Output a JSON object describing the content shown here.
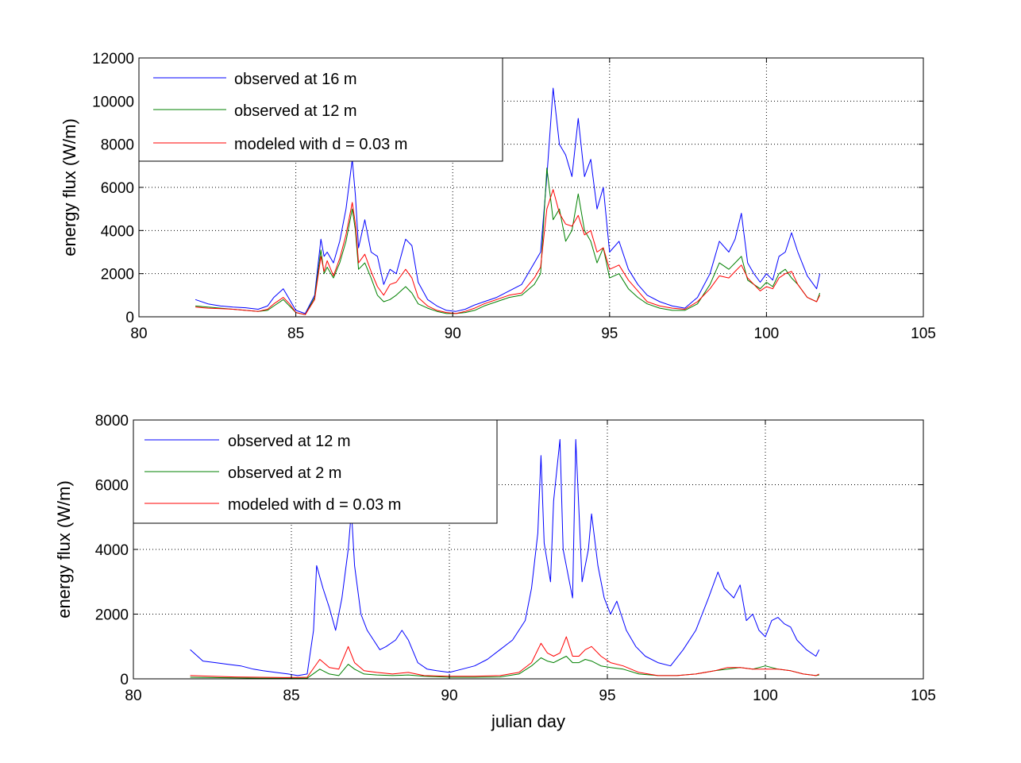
{
  "chart_data": [
    {
      "type": "line",
      "xlabel": "",
      "ylabel": "energy flux (W/m)",
      "xlim": [
        80,
        105
      ],
      "ylim": [
        0,
        12000
      ],
      "xticks": [
        "80",
        "85",
        "90",
        "95",
        "100",
        "105"
      ],
      "yticks": [
        "0",
        "2000",
        "4000",
        "6000",
        "8000",
        "10000",
        "12000"
      ],
      "grid": true,
      "legend_position": "top-left",
      "series": [
        {
          "name": "observed at 16 m",
          "color": "#0000ff",
          "x": [
            81.8,
            82.2,
            82.6,
            83.0,
            83.4,
            83.8,
            84.1,
            84.3,
            84.6,
            84.8,
            85.0,
            85.3,
            85.6,
            85.8,
            85.9,
            86.0,
            86.2,
            86.4,
            86.6,
            86.8,
            86.9,
            87.0,
            87.2,
            87.4,
            87.6,
            87.8,
            88.0,
            88.2,
            88.5,
            88.7,
            88.9,
            89.2,
            89.5,
            89.8,
            90.1,
            90.4,
            90.7,
            91.0,
            91.4,
            91.8,
            92.2,
            92.6,
            92.8,
            93.0,
            93.2,
            93.4,
            93.6,
            93.8,
            94.0,
            94.2,
            94.4,
            94.6,
            94.8,
            95.0,
            95.3,
            95.6,
            95.9,
            96.2,
            96.6,
            97.0,
            97.4,
            97.8,
            98.2,
            98.5,
            98.8,
            99.0,
            99.2,
            99.4,
            99.6,
            99.8,
            100.0,
            100.2,
            100.4,
            100.6,
            100.8,
            101.0,
            101.3,
            101.6,
            101.7
          ],
          "values": [
            800,
            600,
            500,
            450,
            420,
            350,
            500,
            900,
            1300,
            800,
            300,
            150,
            1000,
            3600,
            2800,
            3000,
            2500,
            3500,
            5000,
            7300,
            5600,
            3200,
            4500,
            3000,
            2800,
            1500,
            2200,
            2000,
            3600,
            3300,
            1600,
            800,
            500,
            300,
            250,
            350,
            550,
            700,
            900,
            1200,
            1500,
            2500,
            3000,
            6500,
            10600,
            8000,
            7500,
            6500,
            9200,
            6500,
            7300,
            5000,
            6000,
            3000,
            3500,
            2200,
            1500,
            1000,
            700,
            500,
            400,
            900,
            2000,
            3500,
            3000,
            3600,
            4800,
            2500,
            2000,
            1600,
            2000,
            1700,
            2800,
            3000,
            3900,
            3000,
            1900,
            1300,
            2000
          ]
        },
        {
          "name": "observed at 12 m",
          "color": "#008000",
          "x": [
            81.8,
            82.2,
            82.6,
            83.0,
            83.4,
            83.8,
            84.1,
            84.3,
            84.6,
            84.8,
            85.0,
            85.3,
            85.6,
            85.8,
            85.9,
            86.0,
            86.2,
            86.4,
            86.6,
            86.8,
            86.9,
            87.0,
            87.2,
            87.4,
            87.6,
            87.8,
            88.0,
            88.2,
            88.5,
            88.7,
            88.9,
            89.2,
            89.5,
            89.8,
            90.1,
            90.4,
            90.7,
            91.0,
            91.4,
            91.8,
            92.2,
            92.6,
            92.8,
            93.0,
            93.2,
            93.4,
            93.6,
            93.8,
            94.0,
            94.2,
            94.4,
            94.6,
            94.8,
            95.0,
            95.3,
            95.6,
            95.9,
            96.2,
            96.6,
            97.0,
            97.4,
            97.8,
            98.2,
            98.5,
            98.8,
            99.0,
            99.2,
            99.4,
            99.6,
            99.8,
            100.0,
            100.2,
            100.4,
            100.6,
            100.8,
            101.0,
            101.3,
            101.6,
            101.7
          ],
          "values": [
            500,
            450,
            400,
            350,
            300,
            250,
            300,
            500,
            800,
            500,
            200,
            100,
            900,
            3100,
            2000,
            2300,
            1800,
            2500,
            3500,
            5000,
            4000,
            2200,
            2500,
            1800,
            1000,
            700,
            800,
            1000,
            1400,
            1100,
            600,
            400,
            250,
            150,
            150,
            200,
            300,
            500,
            700,
            900,
            1000,
            1500,
            2000,
            6900,
            4500,
            5000,
            3500,
            4000,
            5700,
            4000,
            3500,
            2500,
            3200,
            1800,
            2000,
            1300,
            900,
            600,
            400,
            300,
            300,
            600,
            1500,
            2500,
            2200,
            2500,
            2800,
            1700,
            1500,
            1300,
            1600,
            1400,
            2000,
            2200,
            1800,
            1500,
            900,
            700,
            1100
          ]
        },
        {
          "name": "modeled with d = 0.03 m",
          "color": "#ff0000",
          "x": [
            81.8,
            82.2,
            82.6,
            83.0,
            83.4,
            83.8,
            84.1,
            84.3,
            84.6,
            84.8,
            85.0,
            85.3,
            85.6,
            85.8,
            85.9,
            86.0,
            86.2,
            86.4,
            86.6,
            86.8,
            86.9,
            87.0,
            87.2,
            87.4,
            87.6,
            87.8,
            88.0,
            88.2,
            88.5,
            88.7,
            88.9,
            89.2,
            89.5,
            89.8,
            90.1,
            90.4,
            90.7,
            91.0,
            91.4,
            91.8,
            92.2,
            92.6,
            92.8,
            93.0,
            93.2,
            93.4,
            93.6,
            93.8,
            94.0,
            94.2,
            94.4,
            94.6,
            94.8,
            95.0,
            95.3,
            95.6,
            95.9,
            96.2,
            96.6,
            97.0,
            97.4,
            97.8,
            98.2,
            98.5,
            98.8,
            99.0,
            99.2,
            99.4,
            99.6,
            99.8,
            100.0,
            100.2,
            100.4,
            100.6,
            100.8,
            101.0,
            101.3,
            101.6,
            101.7
          ],
          "values": [
            450,
            400,
            380,
            350,
            300,
            250,
            350,
            600,
            900,
            600,
            200,
            100,
            800,
            2800,
            2100,
            2600,
            1900,
            2700,
            3800,
            5300,
            4300,
            2500,
            2900,
            2100,
            1400,
            1000,
            1500,
            1600,
            2200,
            1800,
            900,
            500,
            300,
            200,
            150,
            250,
            400,
            600,
            800,
            1000,
            1100,
            1800,
            2300,
            5000,
            5900,
            4800,
            4300,
            4200,
            4700,
            3800,
            4000,
            3000,
            3200,
            2200,
            2400,
            1700,
            1200,
            700,
            500,
            400,
            350,
            700,
            1300,
            1900,
            1800,
            2100,
            2400,
            1800,
            1500,
            1200,
            1400,
            1300,
            1800,
            2000,
            2100,
            1500,
            900,
            700,
            1000
          ]
        }
      ]
    },
    {
      "type": "line",
      "xlabel": "julian day",
      "ylabel": "energy flux (W/m)",
      "xlim": [
        80,
        105
      ],
      "ylim": [
        0,
        8000
      ],
      "xticks": [
        "80",
        "85",
        "90",
        "95",
        "100",
        "105"
      ],
      "yticks": [
        "0",
        "2000",
        "4000",
        "6000",
        "8000"
      ],
      "grid": true,
      "legend_position": "top-left",
      "series": [
        {
          "name": "observed at 12 m",
          "color": "#0000ff",
          "x": [
            81.8,
            82.2,
            82.6,
            83.0,
            83.4,
            83.8,
            84.1,
            84.5,
            84.9,
            85.2,
            85.5,
            85.7,
            85.8,
            86.0,
            86.2,
            86.4,
            86.6,
            86.8,
            86.9,
            87.0,
            87.2,
            87.4,
            87.6,
            87.8,
            88.0,
            88.3,
            88.5,
            88.7,
            89.0,
            89.3,
            89.6,
            90.0,
            90.4,
            90.8,
            91.2,
            91.6,
            92.0,
            92.4,
            92.6,
            92.8,
            92.9,
            93.0,
            93.2,
            93.3,
            93.5,
            93.6,
            93.8,
            93.9,
            94.0,
            94.2,
            94.4,
            94.5,
            94.7,
            94.9,
            95.1,
            95.3,
            95.6,
            95.9,
            96.2,
            96.6,
            97.0,
            97.4,
            97.8,
            98.2,
            98.5,
            98.7,
            99.0,
            99.2,
            99.4,
            99.6,
            99.8,
            100.0,
            100.2,
            100.4,
            100.6,
            100.8,
            101.0,
            101.3,
            101.6,
            101.7
          ],
          "values": [
            900,
            550,
            500,
            450,
            400,
            300,
            250,
            200,
            150,
            100,
            150,
            1500,
            3500,
            2800,
            2200,
            1500,
            2500,
            4000,
            5200,
            3500,
            2000,
            1500,
            1200,
            900,
            1000,
            1200,
            1500,
            1200,
            500,
            300,
            250,
            200,
            300,
            400,
            600,
            900,
            1200,
            1800,
            2800,
            4500,
            6900,
            4200,
            3000,
            5500,
            7400,
            4000,
            3000,
            2500,
            7400,
            3000,
            4000,
            5100,
            3500,
            2500,
            2000,
            2400,
            1500,
            1000,
            700,
            500,
            400,
            900,
            1500,
            2500,
            3300,
            2800,
            2500,
            2900,
            1800,
            2000,
            1500,
            1300,
            1800,
            1900,
            1700,
            1600,
            1200,
            900,
            700,
            900
          ]
        },
        {
          "name": "observed at 2 m",
          "color": "#008000",
          "x": [
            81.8,
            82.5,
            83.2,
            84.0,
            84.8,
            85.5,
            85.9,
            86.2,
            86.5,
            86.8,
            87.0,
            87.3,
            87.7,
            88.2,
            88.7,
            89.2,
            90.0,
            90.8,
            91.6,
            92.2,
            92.6,
            92.9,
            93.1,
            93.3,
            93.5,
            93.7,
            93.9,
            94.1,
            94.3,
            94.5,
            94.8,
            95.1,
            95.5,
            96.0,
            96.6,
            97.2,
            97.8,
            98.4,
            98.8,
            99.2,
            99.6,
            100.0,
            100.4,
            100.8,
            101.2,
            101.6,
            101.7
          ],
          "values": [
            50,
            40,
            30,
            20,
            20,
            20,
            300,
            150,
            100,
            450,
            300,
            150,
            120,
            100,
            120,
            80,
            50,
            50,
            60,
            150,
            400,
            650,
            550,
            500,
            600,
            700,
            500,
            500,
            600,
            550,
            400,
            350,
            300,
            150,
            100,
            100,
            150,
            250,
            300,
            350,
            300,
            400,
            300,
            250,
            150,
            100,
            120
          ]
        },
        {
          "name": "modeled with d = 0.03 m",
          "color": "#ff0000",
          "x": [
            81.8,
            82.5,
            83.2,
            84.0,
            84.8,
            85.5,
            85.9,
            86.2,
            86.5,
            86.8,
            87.0,
            87.3,
            87.7,
            88.2,
            88.7,
            89.2,
            90.0,
            90.8,
            91.6,
            92.2,
            92.6,
            92.9,
            93.1,
            93.3,
            93.5,
            93.7,
            93.9,
            94.1,
            94.3,
            94.5,
            94.8,
            95.1,
            95.5,
            96.0,
            96.6,
            97.2,
            97.8,
            98.4,
            98.8,
            99.2,
            99.6,
            100.0,
            100.4,
            100.8,
            101.2,
            101.6,
            101.7
          ],
          "values": [
            100,
            80,
            60,
            50,
            40,
            50,
            600,
            350,
            300,
            1000,
            500,
            250,
            200,
            150,
            200,
            100,
            80,
            80,
            100,
            200,
            500,
            1100,
            800,
            700,
            800,
            1300,
            700,
            700,
            900,
            1000,
            700,
            500,
            400,
            200,
            100,
            100,
            150,
            250,
            350,
            350,
            300,
            300,
            300,
            250,
            150,
            100,
            150
          ]
        }
      ]
    }
  ]
}
